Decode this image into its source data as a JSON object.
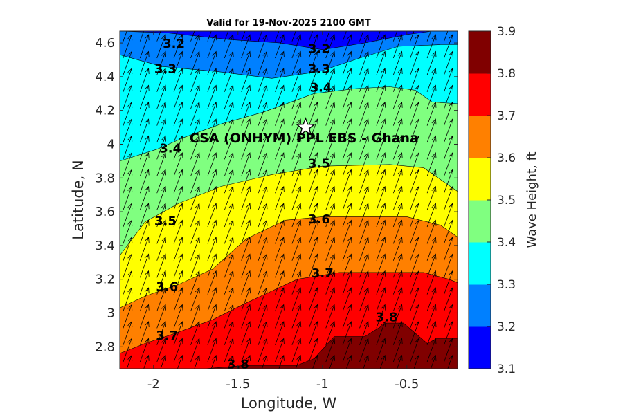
{
  "title": "Valid for 19-Nov-2025 2100 GMT",
  "chart_data": {
    "type": "heatmap",
    "subtype": "filled-contour-map-with-wave-direction-arrows",
    "xlabel": "Longitude, W",
    "ylabel": "Latitude, N",
    "xlim": [
      -2.2,
      -0.2
    ],
    "ylim": [
      2.67,
      4.67
    ],
    "xticks": [
      -2,
      -1.5,
      -1,
      -0.5
    ],
    "xtick_labels": [
      "-2",
      "-1.5",
      "-1",
      "-0.5"
    ],
    "yticks": [
      2.8,
      3.0,
      3.2,
      3.4,
      3.6,
      3.8,
      4.0,
      4.2,
      4.4,
      4.6
    ],
    "ytick_labels": [
      "2.8",
      "3",
      "3.2",
      "3.4",
      "3.6",
      "3.8",
      "4",
      "4.2",
      "4.4",
      "4.6"
    ],
    "colorbar": {
      "label": "Wave Height, ft",
      "levels": [
        3.1,
        3.2,
        3.3,
        3.4,
        3.5,
        3.6,
        3.7,
        3.8,
        3.9
      ],
      "tick_labels": [
        "3.1",
        "3.2",
        "3.3",
        "3.4",
        "3.5",
        "3.6",
        "3.7",
        "3.8",
        "3.9"
      ],
      "colors": [
        "#0000ff",
        "#0080ff",
        "#00ffff",
        "#80ff80",
        "#ffff00",
        "#ff8000",
        "#ff0000",
        "#800000"
      ]
    },
    "contour_boundaries": [
      {
        "level": 3.2,
        "points": [
          [
            -2.2,
            4.67
          ],
          [
            -1.92,
            4.66
          ],
          [
            -1.55,
            4.62
          ],
          [
            -1.25,
            4.6
          ],
          [
            -1.0,
            4.56
          ],
          [
            -0.75,
            4.6
          ],
          [
            -0.5,
            4.65
          ],
          [
            -0.35,
            4.67
          ]
        ]
      },
      {
        "level": 3.3,
        "points": [
          [
            -2.2,
            4.53
          ],
          [
            -1.95,
            4.46
          ],
          [
            -1.62,
            4.43
          ],
          [
            -1.3,
            4.39
          ],
          [
            -1.02,
            4.43
          ],
          [
            -0.78,
            4.51
          ],
          [
            -0.55,
            4.58
          ],
          [
            -0.3,
            4.59
          ],
          [
            -0.2,
            4.59
          ]
        ]
      },
      {
        "level": 3.4,
        "points": [
          [
            -2.2,
            3.9
          ],
          [
            -1.98,
            3.97
          ],
          [
            -1.82,
            4.04
          ],
          [
            -1.6,
            4.12
          ],
          [
            -1.35,
            4.19
          ],
          [
            -1.05,
            4.3
          ],
          [
            -0.8,
            4.33
          ],
          [
            -0.6,
            4.34
          ],
          [
            -0.45,
            4.32
          ],
          [
            -0.35,
            4.25
          ],
          [
            -0.2,
            4.24
          ]
        ]
      },
      {
        "level": 3.5,
        "points": [
          [
            -2.2,
            3.34
          ],
          [
            -2.05,
            3.54
          ],
          [
            -1.85,
            3.65
          ],
          [
            -1.6,
            3.75
          ],
          [
            -1.3,
            3.82
          ],
          [
            -1.0,
            3.87
          ],
          [
            -0.6,
            3.88
          ],
          [
            -0.4,
            3.86
          ],
          [
            -0.2,
            3.72
          ]
        ]
      },
      {
        "level": 3.6,
        "points": [
          [
            -2.2,
            3.03
          ],
          [
            -2.05,
            3.1
          ],
          [
            -1.85,
            3.17
          ],
          [
            -1.65,
            3.26
          ],
          [
            -1.45,
            3.44
          ],
          [
            -1.22,
            3.55
          ],
          [
            -1.0,
            3.57
          ],
          [
            -0.5,
            3.57
          ],
          [
            -0.3,
            3.52
          ],
          [
            -0.2,
            3.45
          ]
        ]
      },
      {
        "level": 3.7,
        "points": [
          [
            -2.2,
            2.76
          ],
          [
            -2.05,
            2.82
          ],
          [
            -1.9,
            2.87
          ],
          [
            -1.65,
            2.96
          ],
          [
            -1.45,
            3.06
          ],
          [
            -1.15,
            3.2
          ],
          [
            -0.9,
            3.24
          ],
          [
            -0.4,
            3.24
          ],
          [
            -0.25,
            3.2
          ],
          [
            -0.2,
            3.18
          ]
        ]
      },
      {
        "level": 3.8,
        "points": [
          [
            -1.7,
            2.67
          ],
          [
            -1.45,
            2.69
          ],
          [
            -1.15,
            2.69
          ],
          [
            -1.05,
            2.73
          ],
          [
            -0.93,
            2.86
          ],
          [
            -0.75,
            2.86
          ],
          [
            -0.62,
            2.94
          ],
          [
            -0.52,
            2.94
          ],
          [
            -0.38,
            2.82
          ],
          [
            -0.32,
            2.85
          ],
          [
            -0.2,
            2.85
          ]
        ]
      }
    ],
    "contour_labels": [
      {
        "text": "3.2",
        "lon": -1.88,
        "lat": 4.6
      },
      {
        "text": "3.2",
        "lon": -1.02,
        "lat": 4.57
      },
      {
        "text": "3.3",
        "lon": -1.93,
        "lat": 4.45
      },
      {
        "text": "3.3",
        "lon": -1.02,
        "lat": 4.45
      },
      {
        "text": "3.4",
        "lon": -1.01,
        "lat": 4.34
      },
      {
        "text": "3.4",
        "lon": -1.9,
        "lat": 3.98
      },
      {
        "text": "3.5",
        "lon": -1.02,
        "lat": 3.89
      },
      {
        "text": "3.5",
        "lon": -1.93,
        "lat": 3.55
      },
      {
        "text": "3.6",
        "lon": -1.02,
        "lat": 3.56
      },
      {
        "text": "3.6",
        "lon": -1.92,
        "lat": 3.16
      },
      {
        "text": "3.7",
        "lon": -1.0,
        "lat": 3.24
      },
      {
        "text": "3.7",
        "lon": -1.92,
        "lat": 2.87
      },
      {
        "text": "3.8",
        "lon": -0.62,
        "lat": 2.98
      },
      {
        "text": "3.8",
        "lon": -1.5,
        "lat": 2.7
      }
    ],
    "wave_direction": {
      "direction_to_deg": 20,
      "grid_lon_step": 0.1,
      "grid_lat_step": 0.1
    },
    "site": {
      "label": "CSA (ONHYM) PPL EBS  - Ghana",
      "lon": -1.1,
      "lat": 4.1,
      "marker": "star"
    }
  }
}
